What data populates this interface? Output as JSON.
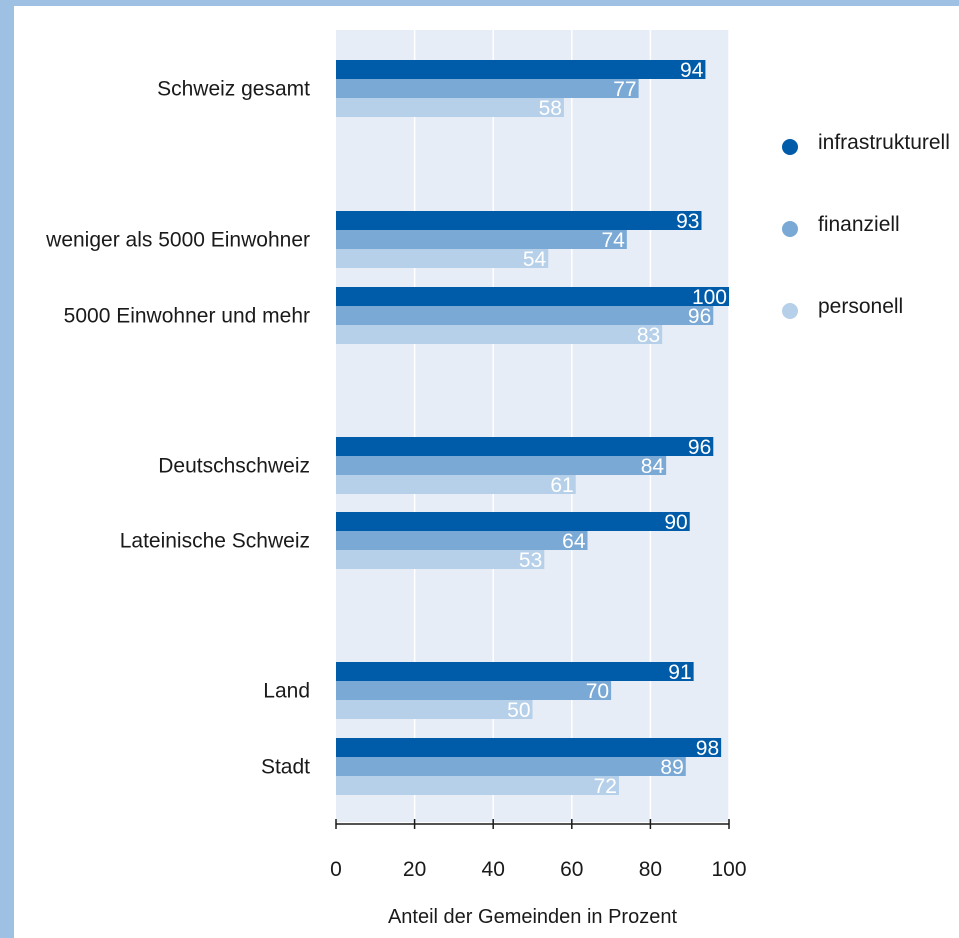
{
  "chart_data": {
    "type": "bar",
    "orientation": "horizontal",
    "categories": [
      "Schweiz gesamt",
      "weniger als 5000 Einwohner",
      "5000 Einwohner und mehr",
      "Deutschschweiz",
      "Lateinische Schweiz",
      "Land",
      "Stadt"
    ],
    "groups": [
      [
        "Schweiz gesamt"
      ],
      [
        "weniger als 5000 Einwohner",
        "5000 Einwohner und mehr"
      ],
      [
        "Deutschschweiz",
        "Lateinische Schweiz"
      ],
      [
        "Land",
        "Stadt"
      ]
    ],
    "series": [
      {
        "name": "infrastrukturell",
        "color": "#005ca9",
        "values": [
          94,
          93,
          100,
          96,
          90,
          91,
          98
        ]
      },
      {
        "name": "finanziell",
        "color": "#7aa9d6",
        "values": [
          77,
          74,
          96,
          84,
          64,
          70,
          89
        ]
      },
      {
        "name": "personell",
        "color": "#b6d0ea",
        "values": [
          58,
          54,
          83,
          61,
          53,
          50,
          72
        ]
      }
    ],
    "xlabel": "Anteil der Gemeinden in Prozent",
    "ylabel": "",
    "xlim": [
      0,
      100
    ],
    "xticks": [
      0,
      20,
      40,
      60,
      80,
      100
    ],
    "legend_position": "right",
    "grid": true,
    "plot_background": "#e6edf6",
    "grid_color": "#ffffff"
  }
}
